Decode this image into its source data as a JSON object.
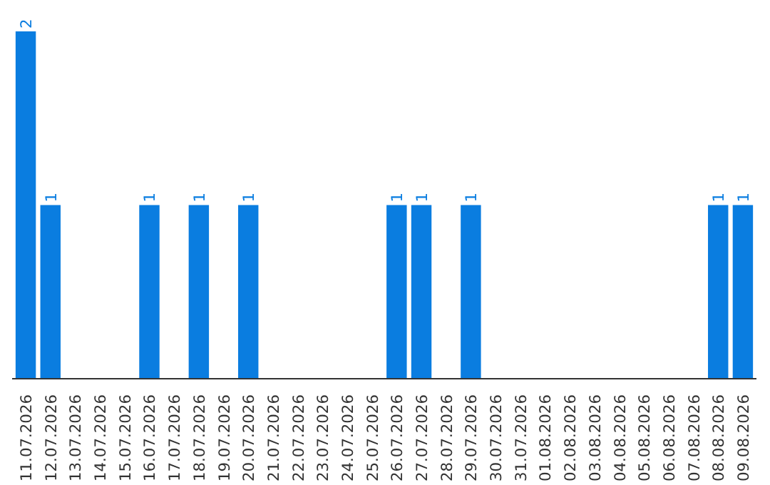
{
  "chart_data": {
    "type": "bar",
    "categories": [
      "11.07.2026",
      "12.07.2026",
      "13.07.2026",
      "14.07.2026",
      "15.07.2026",
      "16.07.2026",
      "17.07.2026",
      "18.07.2026",
      "19.07.2026",
      "20.07.2026",
      "21.07.2026",
      "22.07.2026",
      "23.07.2026",
      "24.07.2026",
      "25.07.2026",
      "26.07.2026",
      "27.07.2026",
      "28.07.2026",
      "29.07.2026",
      "30.07.2026",
      "31.07.2026",
      "01.08.2026",
      "02.08.2026",
      "03.08.2026",
      "04.08.2026",
      "05.08.2026",
      "06.08.2026",
      "07.08.2026",
      "08.08.2026",
      "09.08.2026"
    ],
    "values": [
      2,
      1,
      0,
      0,
      0,
      1,
      0,
      1,
      0,
      1,
      0,
      0,
      0,
      0,
      0,
      1,
      1,
      0,
      1,
      0,
      0,
      0,
      0,
      0,
      0,
      0,
      0,
      0,
      1,
      1
    ],
    "value_labels": [
      "2",
      "1",
      null,
      null,
      null,
      "1",
      null,
      "1",
      null,
      "1",
      null,
      null,
      null,
      null,
      null,
      "1",
      "1",
      null,
      "1",
      null,
      null,
      null,
      null,
      null,
      null,
      null,
      null,
      null,
      "1",
      "1"
    ],
    "color": "#0a7de0",
    "grid": false,
    "tick_labels": "x"
  }
}
